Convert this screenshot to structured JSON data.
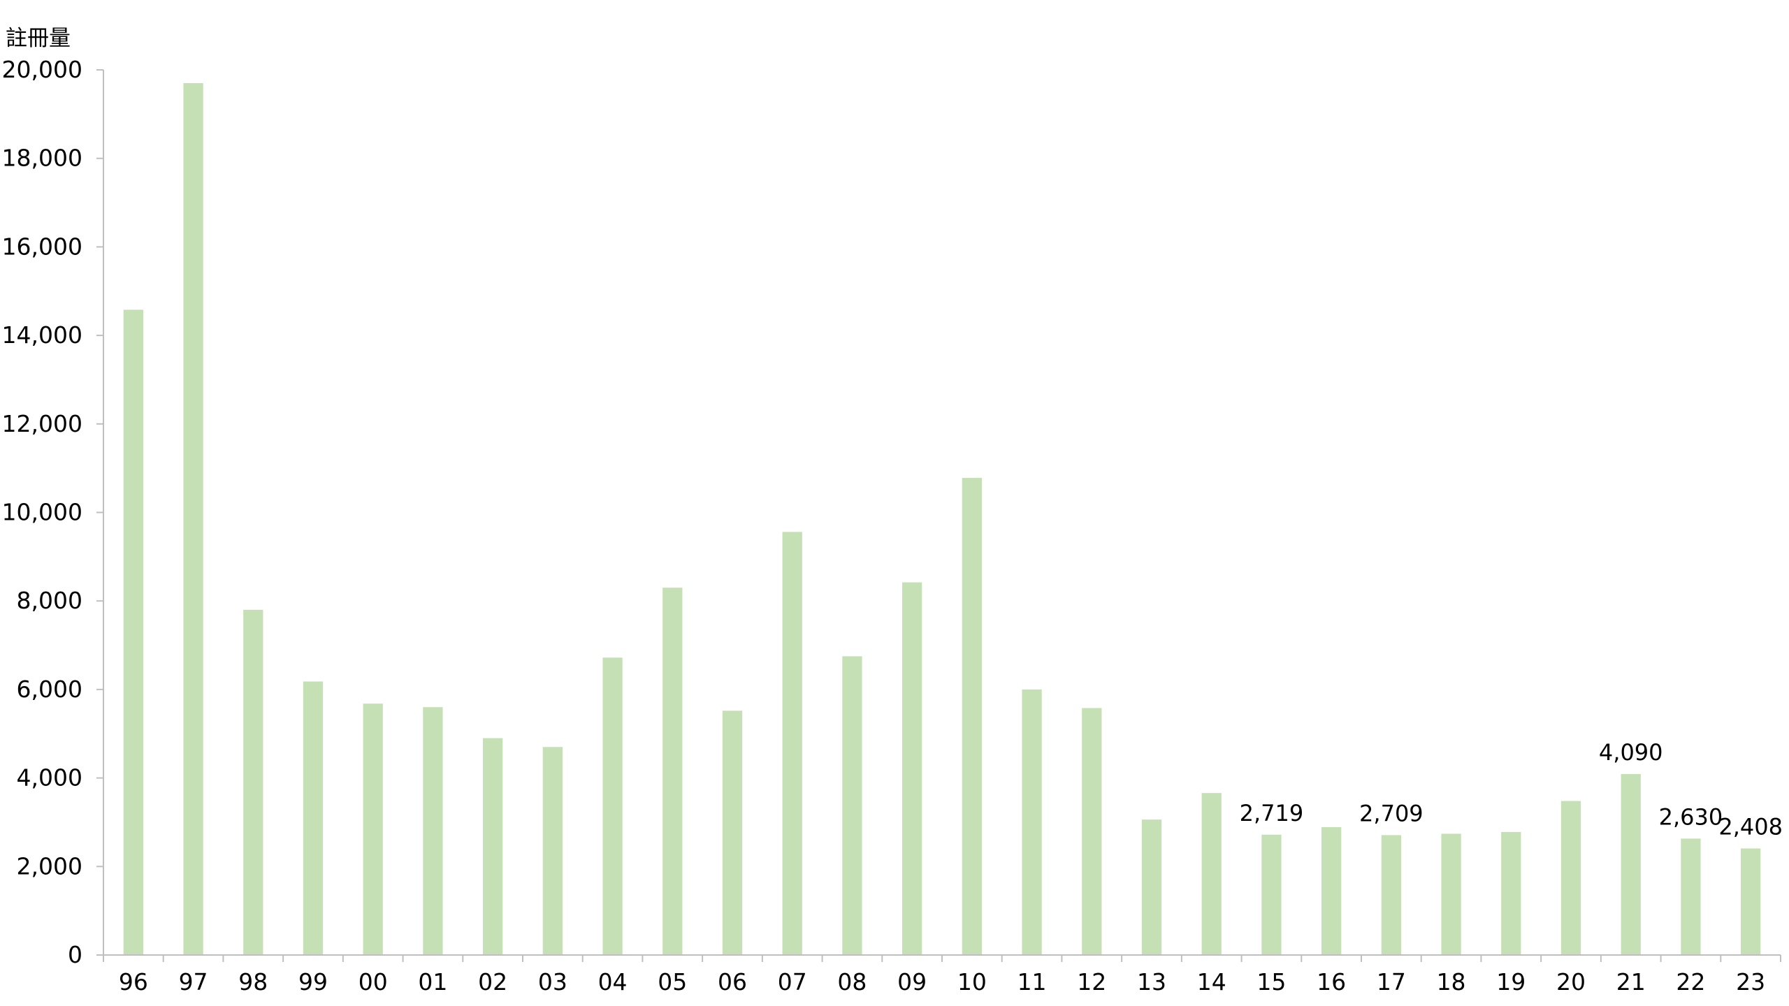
{
  "chart_data": {
    "type": "bar",
    "ylabel": "註冊量",
    "xlabel": "",
    "ylim": [
      0,
      20000
    ],
    "yticks": [
      0,
      2000,
      4000,
      6000,
      8000,
      10000,
      12000,
      14000,
      16000,
      18000,
      20000
    ],
    "ytick_labels": [
      "0",
      "2,000",
      "4,000",
      "6,000",
      "8,000",
      "10,000",
      "12,000",
      "14,000",
      "16,000",
      "18,000",
      "20,000"
    ],
    "grid": false,
    "bar_color": "#c5e0b4",
    "categories": [
      "96",
      "97",
      "98",
      "99",
      "00",
      "01",
      "02",
      "03",
      "04",
      "05",
      "06",
      "07",
      "08",
      "09",
      "10",
      "11",
      "12",
      "13",
      "14",
      "15",
      "16",
      "17",
      "18",
      "19",
      "20",
      "21",
      "22",
      "23"
    ],
    "values": [
      14580,
      19700,
      7800,
      6180,
      5680,
      5600,
      4900,
      4700,
      6720,
      8300,
      5520,
      9560,
      6750,
      8420,
      10780,
      6000,
      5580,
      3060,
      3660,
      2719,
      2890,
      2709,
      2740,
      2780,
      3480,
      4090,
      2630,
      2408
    ],
    "data_labels": [
      "",
      "",
      "",
      "",
      "",
      "",
      "",
      "",
      "",
      "",
      "",
      "",
      "",
      "",
      "",
      "",
      "",
      "",
      "",
      "2,719",
      "",
      "2,709",
      "",
      "",
      "",
      "4,090",
      "2,630",
      "2,408"
    ]
  }
}
